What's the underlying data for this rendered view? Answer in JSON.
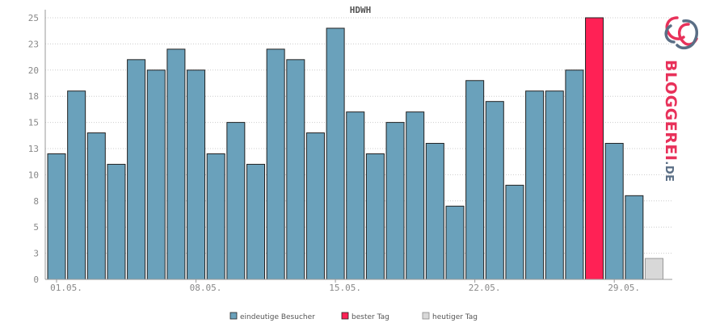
{
  "chart_data": {
    "type": "bar",
    "title": "HDWH",
    "xlabel": "",
    "ylabel": "",
    "ylim": [
      0,
      25
    ],
    "yticks": [
      "0",
      "3",
      "5",
      "8",
      "10",
      "13",
      "15",
      "18",
      "20",
      "23",
      "25"
    ],
    "ytick_values": [
      0,
      2.5,
      5,
      7.5,
      10,
      12.5,
      15,
      17.5,
      20,
      22.5,
      25
    ],
    "xtick_labels": [
      "01.05.",
      "08.05.",
      "15.05.",
      "22.05.",
      "29.05."
    ],
    "xtick_bar_index": [
      0,
      7,
      14,
      21,
      28
    ],
    "grid": true,
    "legend_position": "bottom",
    "values": [
      12,
      18,
      14,
      11,
      21,
      20,
      22,
      20,
      12,
      15,
      11,
      22,
      21,
      14,
      24,
      16,
      12,
      15,
      16,
      13,
      7,
      19,
      17,
      9,
      18,
      18,
      20,
      25,
      13,
      8,
      2
    ],
    "bar_types": [
      "normal",
      "normal",
      "normal",
      "normal",
      "normal",
      "normal",
      "normal",
      "normal",
      "normal",
      "normal",
      "normal",
      "normal",
      "normal",
      "normal",
      "normal",
      "normal",
      "normal",
      "normal",
      "normal",
      "normal",
      "normal",
      "normal",
      "normal",
      "normal",
      "normal",
      "normal",
      "normal",
      "best",
      "normal",
      "normal",
      "today"
    ],
    "legend": [
      {
        "label": "eindeutige Besucher",
        "color": "#6aa1bb"
      },
      {
        "label": "bester Tag",
        "color": "#ff2155"
      },
      {
        "label": "heutiger Tag",
        "color": "#d8d8d8"
      }
    ]
  },
  "logo": {
    "text_main": "BLOGGEREI",
    "text_suffix": ".DE",
    "color_main": "#e8315a",
    "color_suffix": "#5a6e85"
  },
  "colors": {
    "normal": "#6aa1bb",
    "best": "#ff2155",
    "today": "#d8d8d8",
    "stroke": "#222222",
    "grid": "#cccccc",
    "axis": "#999999"
  }
}
